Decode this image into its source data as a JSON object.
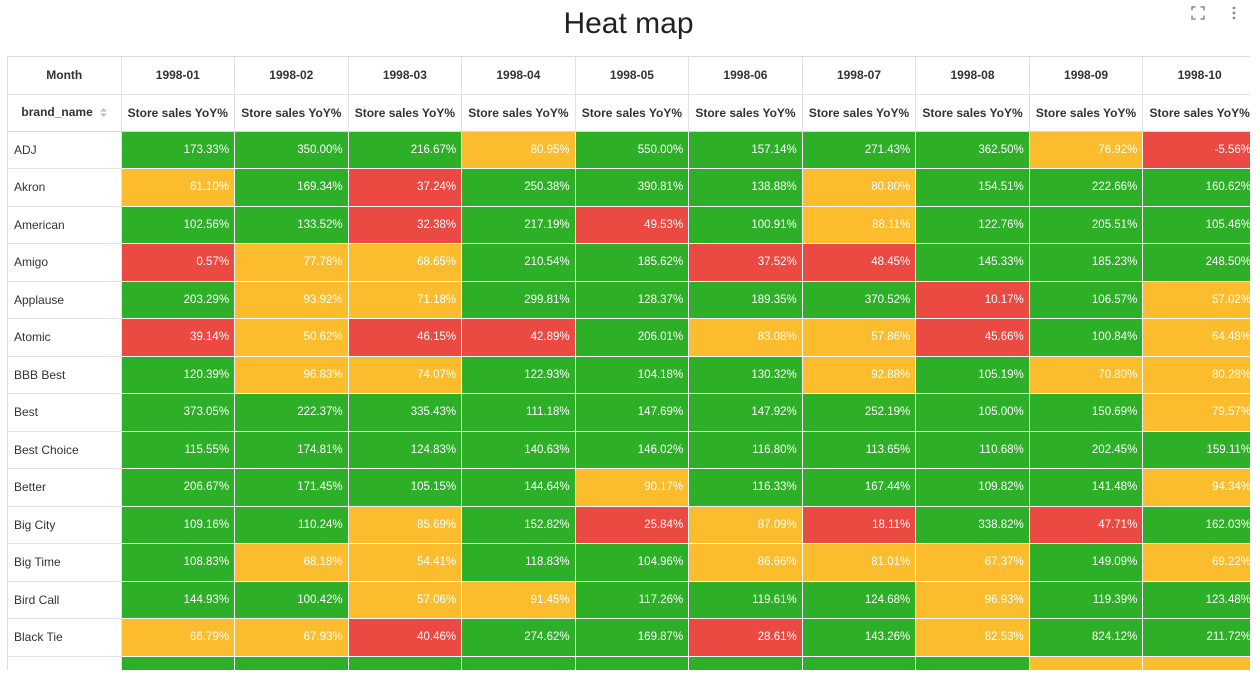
{
  "header": {
    "title": "Heat map",
    "icons": [
      "fullscreen-icon",
      "more-vertical-icon"
    ]
  },
  "chart_data": {
    "type": "heatmap",
    "title": "Heat map",
    "column_dimension_label": "Month",
    "row_dimension_label": "brand_name",
    "measure_label": "Store sales YoY%",
    "columns": [
      "1998-01",
      "1998-02",
      "1998-03",
      "1998-04",
      "1998-05",
      "1998-06",
      "1998-07",
      "1998-08",
      "1998-09",
      "1998-10"
    ],
    "rows": [
      {
        "brand": "ADJ",
        "values": [
          "173.33%",
          "350.00%",
          "216.67%",
          "80.95%",
          "550.00%",
          "157.14%",
          "271.43%",
          "362.50%",
          "76.92%",
          "-5.56%"
        ],
        "colors": [
          "green",
          "green",
          "green",
          "yellow",
          "green",
          "green",
          "green",
          "green",
          "yellow",
          "red"
        ]
      },
      {
        "brand": "Akron",
        "values": [
          "61.10%",
          "169.34%",
          "37.24%",
          "250.38%",
          "390.81%",
          "138.88%",
          "80.80%",
          "154.51%",
          "222.66%",
          "160.62%"
        ],
        "colors": [
          "yellow",
          "green",
          "red",
          "green",
          "green",
          "green",
          "yellow",
          "green",
          "green",
          "green"
        ]
      },
      {
        "brand": "American",
        "values": [
          "102.56%",
          "133.52%",
          "32.38%",
          "217.19%",
          "49.53%",
          "100.91%",
          "88.11%",
          "122.76%",
          "205.51%",
          "105.46%"
        ],
        "colors": [
          "green",
          "green",
          "red",
          "green",
          "red",
          "green",
          "yellow",
          "green",
          "green",
          "green"
        ]
      },
      {
        "brand": "Amigo",
        "values": [
          "0.57%",
          "77.78%",
          "68.65%",
          "210.54%",
          "185.62%",
          "37.52%",
          "48.45%",
          "145.33%",
          "185.23%",
          "248.50%"
        ],
        "colors": [
          "red",
          "yellow",
          "yellow",
          "green",
          "green",
          "red",
          "red",
          "green",
          "green",
          "green"
        ]
      },
      {
        "brand": "Applause",
        "values": [
          "203.29%",
          "93.92%",
          "71.18%",
          "299.81%",
          "128.37%",
          "189.35%",
          "370.52%",
          "10.17%",
          "106.57%",
          "57.02%"
        ],
        "colors": [
          "green",
          "yellow",
          "yellow",
          "green",
          "green",
          "green",
          "green",
          "red",
          "green",
          "yellow"
        ]
      },
      {
        "brand": "Atomic",
        "values": [
          "39.14%",
          "50.62%",
          "46.15%",
          "42.89%",
          "206.01%",
          "83.08%",
          "57.86%",
          "45.66%",
          "100.84%",
          "64.48%"
        ],
        "colors": [
          "red",
          "yellow",
          "red",
          "red",
          "green",
          "yellow",
          "yellow",
          "red",
          "green",
          "yellow"
        ]
      },
      {
        "brand": "BBB Best",
        "values": [
          "120.39%",
          "96.83%",
          "74.07%",
          "122.93%",
          "104.18%",
          "130.32%",
          "92.88%",
          "105.19%",
          "70.80%",
          "80.28%"
        ],
        "colors": [
          "green",
          "yellow",
          "yellow",
          "green",
          "green",
          "green",
          "yellow",
          "green",
          "yellow",
          "yellow"
        ]
      },
      {
        "brand": "Best",
        "values": [
          "373.05%",
          "222.37%",
          "335.43%",
          "111.18%",
          "147.69%",
          "147.92%",
          "252.19%",
          "105.00%",
          "150.69%",
          "79.57%"
        ],
        "colors": [
          "green",
          "green",
          "green",
          "green",
          "green",
          "green",
          "green",
          "green",
          "green",
          "yellow"
        ]
      },
      {
        "brand": "Best Choice",
        "values": [
          "115.55%",
          "174.81%",
          "124.83%",
          "140.63%",
          "146.02%",
          "116.80%",
          "113.65%",
          "110.68%",
          "202.45%",
          "159.11%"
        ],
        "colors": [
          "green",
          "green",
          "green",
          "green",
          "green",
          "green",
          "green",
          "green",
          "green",
          "green"
        ]
      },
      {
        "brand": "Better",
        "values": [
          "206.67%",
          "171.45%",
          "105.15%",
          "144.64%",
          "90.17%",
          "116.33%",
          "167.44%",
          "109.82%",
          "141.48%",
          "94.34%"
        ],
        "colors": [
          "green",
          "green",
          "green",
          "green",
          "yellow",
          "green",
          "green",
          "green",
          "green",
          "yellow"
        ]
      },
      {
        "brand": "Big City",
        "values": [
          "109.16%",
          "110.24%",
          "85.69%",
          "152.82%",
          "25.84%",
          "87.09%",
          "18.11%",
          "338.82%",
          "47.71%",
          "162.03%"
        ],
        "colors": [
          "green",
          "green",
          "yellow",
          "green",
          "red",
          "yellow",
          "red",
          "green",
          "red",
          "green"
        ]
      },
      {
        "brand": "Big Time",
        "values": [
          "108.83%",
          "68.18%",
          "54.41%",
          "118.83%",
          "104.96%",
          "86.66%",
          "81.01%",
          "67.37%",
          "149.09%",
          "69.22%"
        ],
        "colors": [
          "green",
          "yellow",
          "yellow",
          "green",
          "green",
          "yellow",
          "yellow",
          "yellow",
          "green",
          "yellow"
        ]
      },
      {
        "brand": "Bird Call",
        "values": [
          "144.93%",
          "100.42%",
          "57.06%",
          "91.45%",
          "117.26%",
          "119.61%",
          "124.68%",
          "96.93%",
          "119.39%",
          "123.48%"
        ],
        "colors": [
          "green",
          "green",
          "yellow",
          "yellow",
          "green",
          "green",
          "green",
          "yellow",
          "green",
          "green"
        ]
      },
      {
        "brand": "Black Tie",
        "values": [
          "66.79%",
          "67.93%",
          "40.46%",
          "274.62%",
          "169.87%",
          "28.61%",
          "143.26%",
          "82.53%",
          "824.12%",
          "211.72%"
        ],
        "colors": [
          "yellow",
          "yellow",
          "red",
          "green",
          "green",
          "red",
          "green",
          "yellow",
          "green",
          "green"
        ]
      },
      {
        "brand": "",
        "values": [
          "",
          "",
          "",
          "",
          "",
          "",
          "",
          "",
          "",
          ""
        ],
        "colors": [
          "green",
          "green",
          "green",
          "green",
          "green",
          "green",
          "green",
          "green",
          "yellow",
          "yellow"
        ]
      }
    ],
    "color_scale": {
      "green": "#2eaf28",
      "yellow": "#fbbd2d",
      "red": "#ea4a42"
    },
    "grid": true,
    "legend": "none"
  }
}
